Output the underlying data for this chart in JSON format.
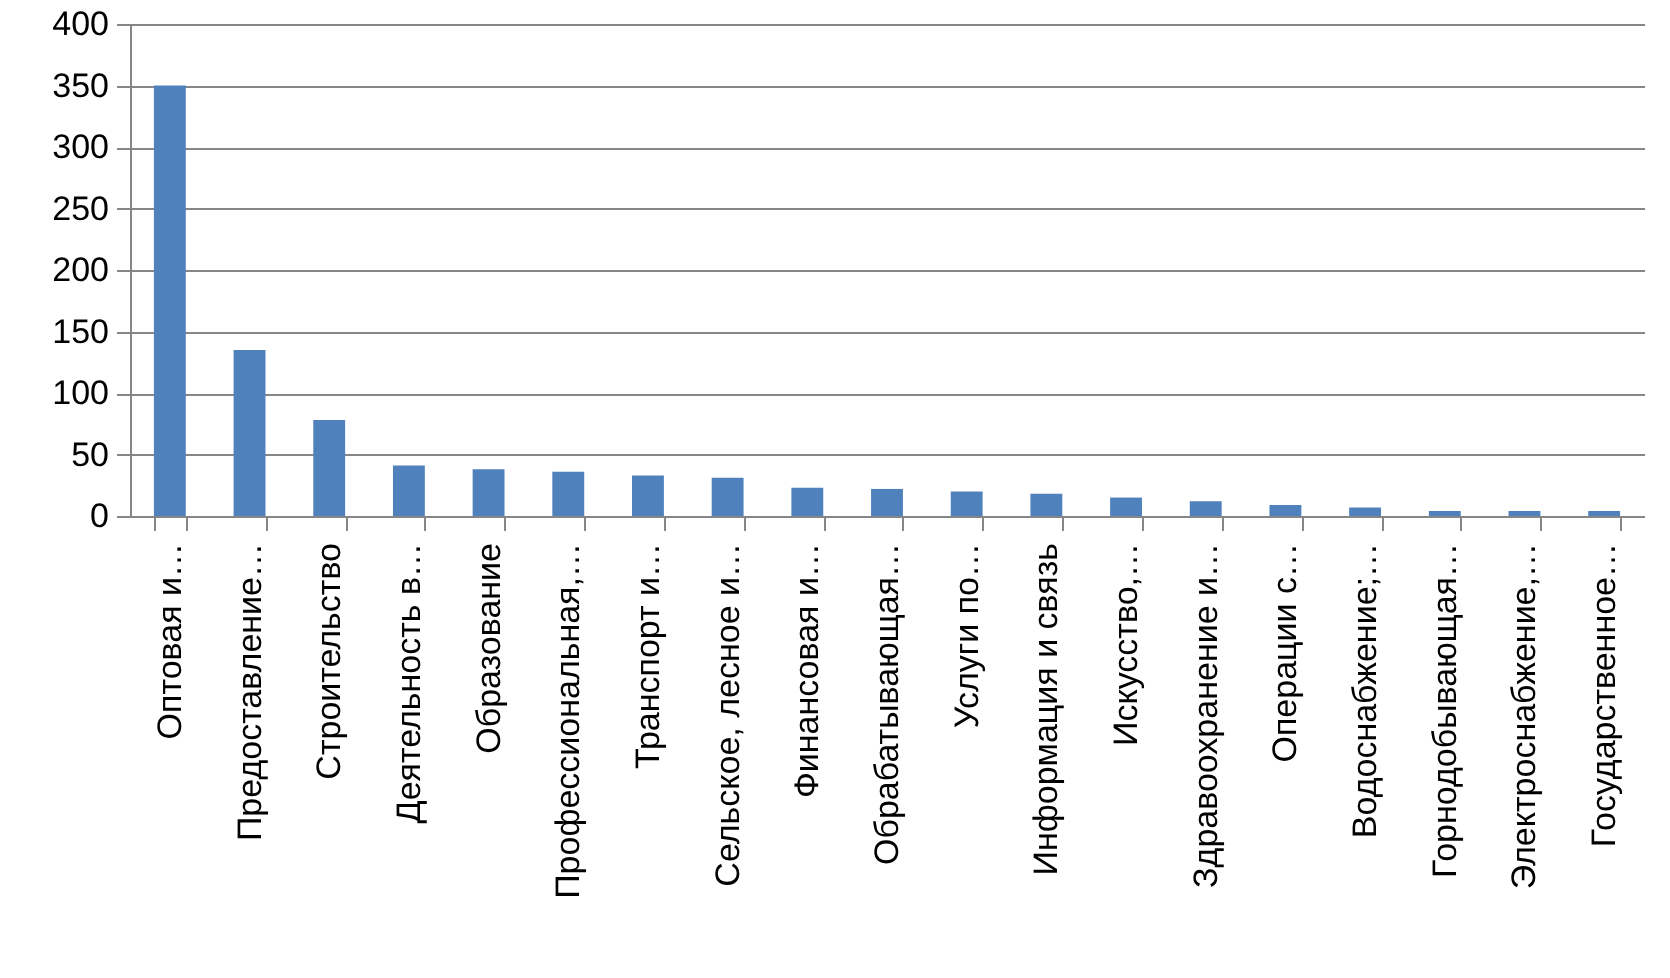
{
  "chart_data": {
    "type": "bar",
    "categories": [
      "Оптовая и…",
      "Предоставление…",
      "Строительство",
      "Деятельность в…",
      "Образование",
      "Профессиональная,…",
      "Транспорт и…",
      "Сельское, лесное и…",
      "Финансовая и…",
      "Обрабатывающая…",
      "Услуги по…",
      "Информация и связь",
      "Искусство,…",
      "Здравоохранение и…",
      "Операции с…",
      "Водоснабжение;…",
      "Горнодобывающая…",
      "Электроснабжение,…",
      "Государственное…"
    ],
    "values": [
      350,
      135,
      78,
      41,
      38,
      36,
      33,
      31,
      23,
      22,
      20,
      18,
      15,
      12,
      9,
      7,
      4,
      4,
      4
    ],
    "color": "#4f81bd",
    "ylim": [
      0,
      400
    ],
    "yticks": [
      0,
      50,
      100,
      150,
      200,
      250,
      300,
      350,
      400
    ],
    "grid": "y"
  }
}
